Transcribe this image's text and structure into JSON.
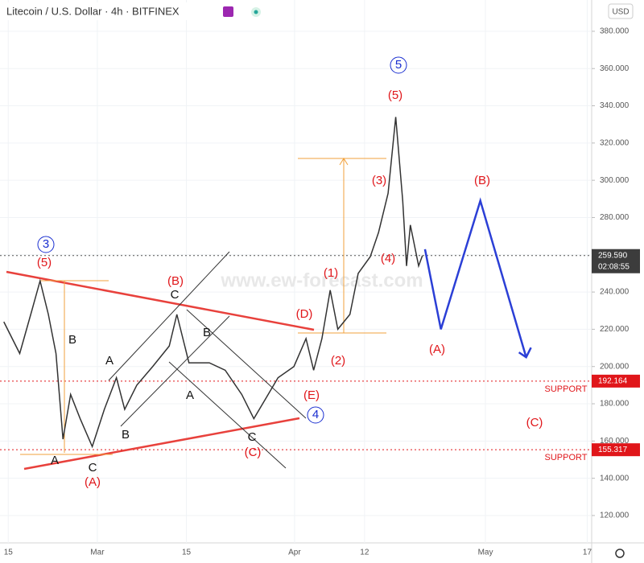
{
  "chart_data": {
    "type": "line",
    "title": "Litecoin / U.S. Dollar · 4h · BITFINEX",
    "currency": "USD",
    "watermark": "www.ew-forecast.com",
    "color": "#333333",
    "x": [
      45.3,
      47.8,
      49.7,
      51,
      52.3,
      53.5,
      54.6,
      55.8,
      57.3,
      59.2,
      61.1,
      63,
      64.3,
      66.2,
      68.7,
      71.3,
      72.5,
      74.4,
      77.6,
      80.1,
      82.7,
      84.6,
      86.5,
      88.4,
      90.9,
      92.8,
      94,
      95.3,
      96.6,
      97.8,
      99.7,
      101,
      102.9,
      104.2,
      105.7,
      106.9,
      108,
      108.6,
      109.2,
      110.5,
      111.1
    ],
    "values": [
      224,
      207,
      230,
      246,
      228,
      207,
      161,
      185,
      172,
      157,
      177,
      194,
      177,
      190,
      200,
      211,
      228,
      202,
      202,
      198,
      185,
      172,
      183,
      194,
      200,
      215,
      198,
      215,
      241,
      220,
      228,
      250,
      259,
      272,
      293,
      334,
      289,
      254,
      276,
      254,
      259.59
    ],
    "projection_color": "#2b3fd6",
    "projection_x": [
      111.5,
      114,
      120.2,
      127.4
    ],
    "projection_values": [
      263,
      220,
      289,
      205
    ],
    "xlim": [
      44.7,
      137.7
    ],
    "ylim": [
      105.3,
      396.8
    ],
    "xticks": [
      {
        "value": 46,
        "label": "15"
      },
      {
        "value": 60,
        "label": "Mar"
      },
      {
        "value": 74,
        "label": "15"
      },
      {
        "value": 91,
        "label": "Apr"
      },
      {
        "value": 102,
        "label": "12"
      },
      {
        "value": 121,
        "label": "May"
      },
      {
        "value": 137,
        "label": "17"
      }
    ],
    "yticks": [
      {
        "value": 120,
        "label": "120.000"
      },
      {
        "value": 140,
        "label": "140.000"
      },
      {
        "value": 160,
        "label": "160.000"
      },
      {
        "value": 180,
        "label": "180.000"
      },
      {
        "value": 200,
        "label": "200.000"
      },
      {
        "value": 220,
        "label": "220.000"
      },
      {
        "value": 240,
        "label": "240.000"
      },
      {
        "value": 260,
        "label": "260.000"
      },
      {
        "value": 280,
        "label": "280.000"
      },
      {
        "value": 300,
        "label": "300.000"
      },
      {
        "value": 320,
        "label": "320.000"
      },
      {
        "value": 340,
        "label": "340.000"
      },
      {
        "value": 360,
        "label": "360.000"
      },
      {
        "value": 380,
        "label": "380.000"
      }
    ],
    "current_price": {
      "value": 259.59,
      "label": "259.590"
    },
    "countdown": "02:08:55",
    "support_levels": [
      {
        "value": 192.164,
        "label": "192.164"
      },
      {
        "value": 155.317,
        "label": "155.317"
      }
    ],
    "support_label": [
      "SUPPORT",
      "SUPPORT"
    ],
    "annotations": [
      "3",
      "(5)",
      "B",
      "A",
      "C",
      "(A)",
      "A",
      "B",
      "(B)",
      "C",
      "B",
      "A",
      "C",
      "(C)",
      "(D)",
      "(E)",
      "4",
      "(1)",
      "(2)",
      "(3)",
      "(4)",
      "(5)",
      "5",
      "(A)",
      "(B)",
      "(C)"
    ]
  }
}
